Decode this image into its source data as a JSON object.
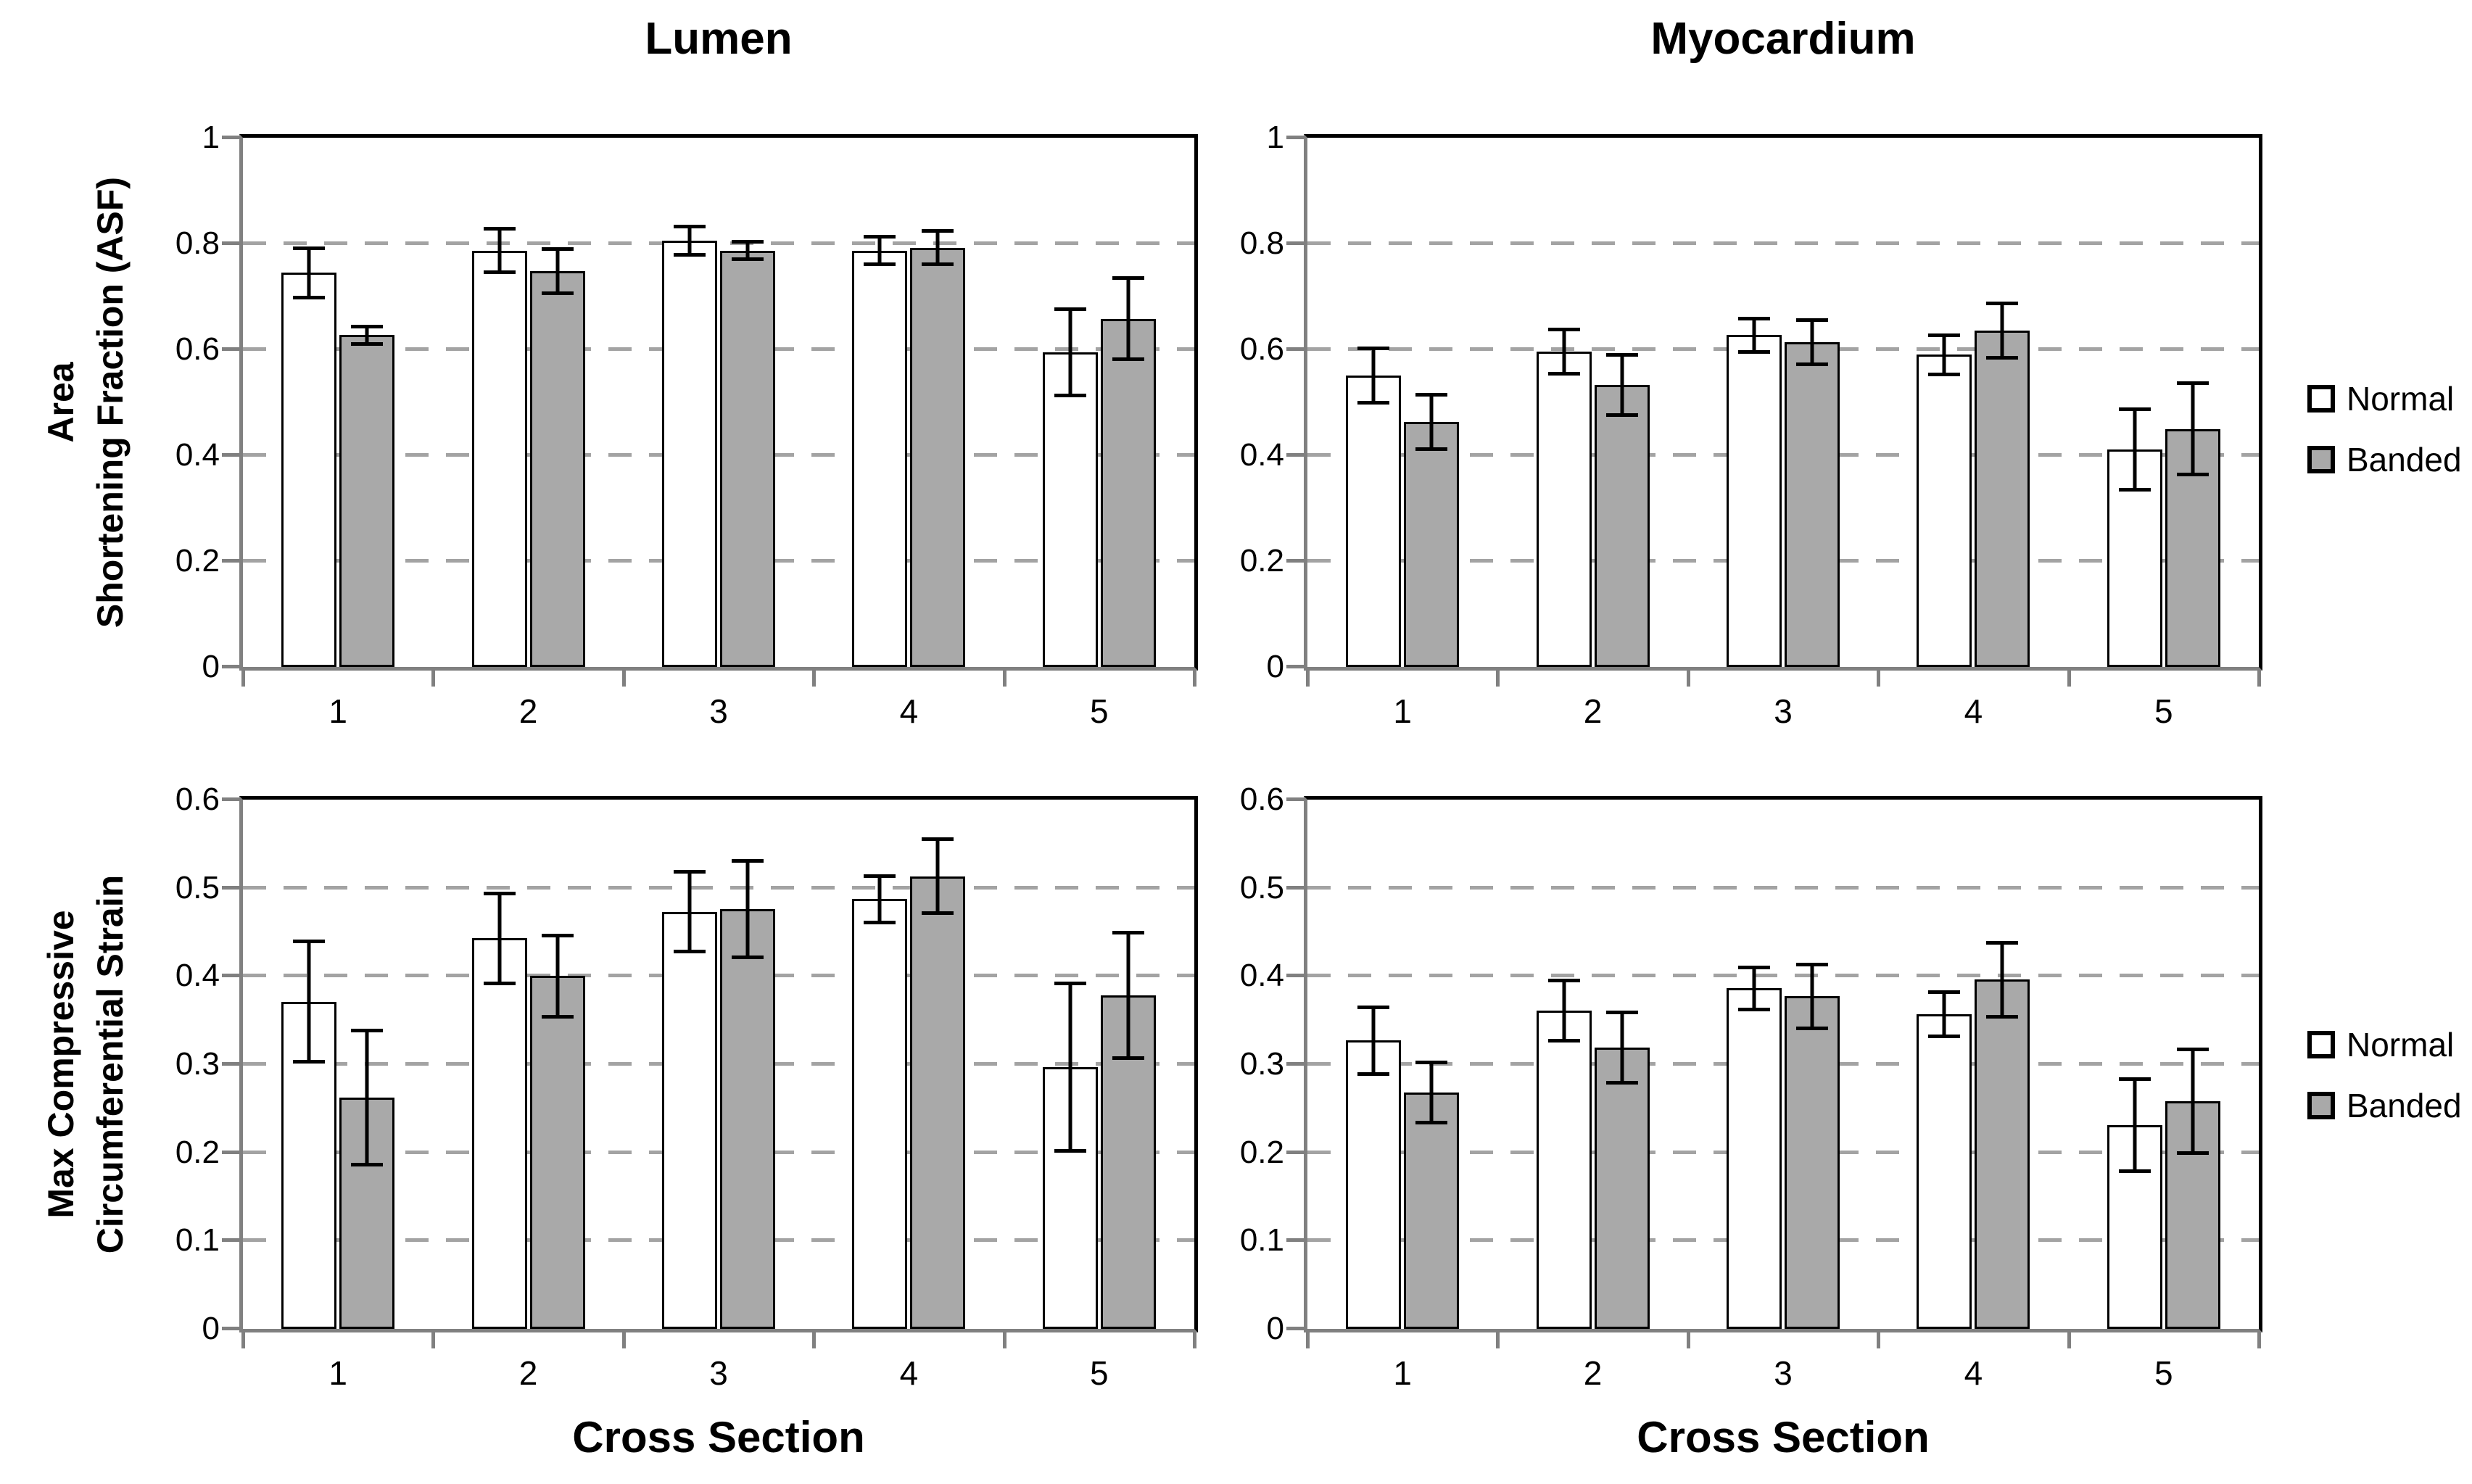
{
  "legend": {
    "normal_label": "Normal",
    "banded_label": "Banded"
  },
  "colors": {
    "normal_fill": "#ffffff",
    "banded_fill": "#a9a9a9",
    "bar_border": "#000000",
    "gridline": "#a3a3a3",
    "axis_line": "#808080",
    "plot_border": "#000000"
  },
  "chart_data": [
    {
      "id": "lumen-asf",
      "type": "bar",
      "title": "Lumen",
      "ylabel_lines": [
        "Area",
        "Shortening Fraction (ASF)"
      ],
      "xlabel": "",
      "categories": [
        "1",
        "2",
        "3",
        "4",
        "5"
      ],
      "ylim": [
        0,
        1
      ],
      "ytick_step": 0.2,
      "yticks": [
        "0",
        "0.2",
        "0.4",
        "0.6",
        "0.8",
        "1"
      ],
      "grid": "dashed",
      "legend_position": "right",
      "series": [
        {
          "name": "Normal",
          "values": [
            0.745,
            0.787,
            0.806,
            0.787,
            0.595
          ],
          "errors": [
            0.05,
            0.045,
            0.03,
            0.03,
            0.085
          ]
        },
        {
          "name": "Banded",
          "values": [
            0.627,
            0.748,
            0.787,
            0.792,
            0.658
          ],
          "errors": [
            0.02,
            0.045,
            0.02,
            0.035,
            0.08
          ]
        }
      ]
    },
    {
      "id": "myocardium-asf",
      "type": "bar",
      "title": "Myocardium",
      "ylabel_lines": [],
      "xlabel": "",
      "categories": [
        "1",
        "2",
        "3",
        "4",
        "5"
      ],
      "ylim": [
        0,
        1
      ],
      "ytick_step": 0.2,
      "yticks": [
        "0",
        "0.2",
        "0.4",
        "0.6",
        "0.8",
        "1"
      ],
      "grid": "dashed",
      "legend_position": "right",
      "series": [
        {
          "name": "Normal",
          "values": [
            0.551,
            0.596,
            0.627,
            0.59,
            0.411
          ],
          "errors": [
            0.055,
            0.045,
            0.035,
            0.04,
            0.08
          ]
        },
        {
          "name": "Banded",
          "values": [
            0.463,
            0.533,
            0.614,
            0.636,
            0.45
          ],
          "errors": [
            0.055,
            0.06,
            0.045,
            0.055,
            0.09
          ]
        }
      ]
    },
    {
      "id": "lumen-strain",
      "type": "bar",
      "title": "",
      "ylabel_lines": [
        "Max Compressive",
        "Circumferential Strain"
      ],
      "xlabel": "Cross Section",
      "categories": [
        "1",
        "2",
        "3",
        "4",
        "5"
      ],
      "ylim": [
        0,
        0.6
      ],
      "ytick_step": 0.1,
      "yticks": [
        "0",
        "0.1",
        "0.2",
        "0.3",
        "0.4",
        "0.5",
        "0.6"
      ],
      "grid": "dashed",
      "legend_position": "right",
      "series": [
        {
          "name": "Normal",
          "values": [
            0.371,
            0.443,
            0.473,
            0.487,
            0.297
          ],
          "errors": [
            0.07,
            0.053,
            0.047,
            0.028,
            0.097
          ]
        },
        {
          "name": "Banded",
          "values": [
            0.262,
            0.4,
            0.476,
            0.513,
            0.378
          ],
          "errors": [
            0.078,
            0.048,
            0.057,
            0.044,
            0.073
          ]
        }
      ]
    },
    {
      "id": "myocardium-strain",
      "type": "bar",
      "title": "",
      "ylabel_lines": [],
      "xlabel": "Cross Section",
      "categories": [
        "1",
        "2",
        "3",
        "4",
        "5"
      ],
      "ylim": [
        0,
        0.6
      ],
      "ytick_step": 0.1,
      "yticks": [
        "0",
        "0.1",
        "0.2",
        "0.3",
        "0.4",
        "0.5",
        "0.6"
      ],
      "grid": "dashed",
      "legend_position": "right",
      "series": [
        {
          "name": "Normal",
          "values": [
            0.327,
            0.361,
            0.386,
            0.357,
            0.231
          ],
          "errors": [
            0.04,
            0.036,
            0.026,
            0.027,
            0.054
          ]
        },
        {
          "name": "Banded",
          "values": [
            0.268,
            0.319,
            0.377,
            0.396,
            0.258
          ],
          "errors": [
            0.036,
            0.042,
            0.038,
            0.044,
            0.061
          ]
        }
      ]
    }
  ]
}
